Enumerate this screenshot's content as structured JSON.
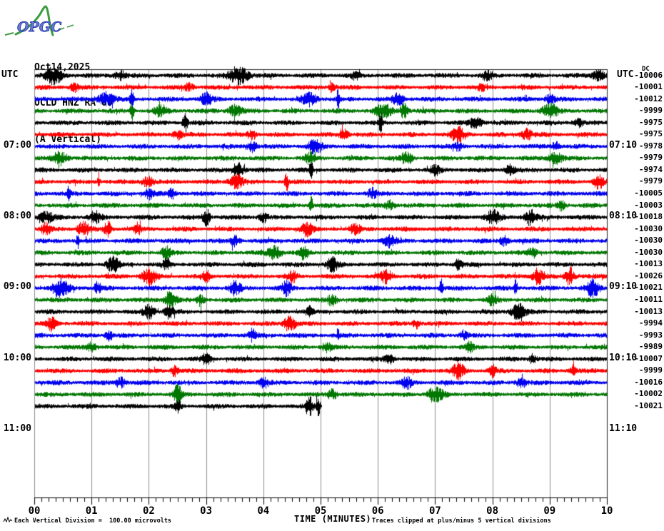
{
  "logo": {
    "text": "OPGC"
  },
  "header": {
    "date": "Oct14,2025",
    "station": "OCLD HNZ RA 00",
    "component": "(A Vertical)"
  },
  "axis": {
    "utc_left": "UTC",
    "utc_right": "UTC",
    "dc_label": "DC",
    "xlabel": "TIME (MINUTES)",
    "minute_labels": [
      "00",
      "01",
      "02",
      "03",
      "04",
      "05",
      "06",
      "07",
      "08",
      "09",
      "10"
    ],
    "hour_labels_left": [
      {
        "row": 7,
        "text": "07:00"
      },
      {
        "row": 13,
        "text": "08:00"
      },
      {
        "row": 19,
        "text": "09:00"
      },
      {
        "row": 25,
        "text": "10:00"
      },
      {
        "row": 31,
        "text": "11:00"
      }
    ],
    "hour_labels_right": [
      {
        "row": 7,
        "text": "07:10"
      },
      {
        "row": 13,
        "text": "08:10"
      },
      {
        "row": 19,
        "text": "09:10"
      },
      {
        "row": 25,
        "text": "10:10"
      },
      {
        "row": 31,
        "text": "11:10"
      }
    ]
  },
  "footer": {
    "left_note": "Each Vertical Division =  100.00 microvolts",
    "right_note": "Traces clipped at plus/minus 5 vertical divisions"
  },
  "colors": {
    "black": "#000000",
    "red": "#ff0000",
    "blue": "#0000ee",
    "green": "#007700",
    "grid": "#8c8c8c",
    "frame": "#222222",
    "logo_green": "#3d9c42",
    "logo_blue": "#4056c0"
  },
  "chart_data": {
    "type": "line",
    "subtype": "seismogram-helicorder",
    "title": "OCLD HNZ RA 00 (A Vertical) Oct14,2025",
    "xlabel": "TIME (MINUTES)",
    "x_range": [
      0,
      10
    ],
    "minor_ticks_per_minute": 7,
    "minutes_per_line": 10,
    "start_time_utc": "06:00",
    "division_microvolts": 100.0,
    "clip_divisions": 5,
    "trace_color_cycle": [
      "black",
      "red",
      "blue",
      "green"
    ],
    "traces": [
      {
        "start": "06:00",
        "color": "black",
        "dc": "-10006",
        "seed": 101,
        "end": 1.0,
        "bursts": [
          [
            0.033,
            0.015,
            9
          ],
          [
            0.15,
            0.01,
            5
          ],
          [
            0.357,
            0.016,
            10
          ],
          [
            0.56,
            0.008,
            4
          ],
          [
            0.79,
            0.01,
            4
          ],
          [
            0.985,
            0.01,
            6
          ]
        ]
      },
      {
        "start": "06:10",
        "color": "red",
        "dc": "-10001",
        "seed": 202,
        "end": 1.0,
        "bursts": [
          [
            0.07,
            0.008,
            4
          ],
          [
            0.27,
            0.008,
            4
          ],
          [
            0.52,
            0.006,
            5
          ],
          [
            0.78,
            0.006,
            4
          ]
        ]
      },
      {
        "start": "06:20",
        "color": "blue",
        "dc": "-10012",
        "seed": 303,
        "end": 1.0,
        "bursts": [
          [
            0.125,
            0.014,
            7
          ],
          [
            0.17,
            0.003,
            10
          ],
          [
            0.3,
            0.01,
            6
          ],
          [
            0.48,
            0.012,
            7
          ],
          [
            0.53,
            0.002,
            15
          ],
          [
            0.635,
            0.01,
            6
          ],
          [
            0.9,
            0.008,
            5
          ]
        ]
      },
      {
        "start": "06:30",
        "color": "green",
        "dc": "-9999",
        "seed": 404,
        "end": 1.0,
        "bursts": [
          [
            0.17,
            0.003,
            12
          ],
          [
            0.22,
            0.01,
            6
          ],
          [
            0.35,
            0.012,
            6
          ],
          [
            0.61,
            0.014,
            7
          ],
          [
            0.645,
            0.006,
            8
          ],
          [
            0.9,
            0.014,
            7
          ]
        ]
      },
      {
        "start": "06:40",
        "color": "black",
        "dc": "-9975",
        "seed": 505,
        "end": 1.0,
        "bursts": [
          [
            0.263,
            0.004,
            11
          ],
          [
            0.604,
            0.003,
            13
          ],
          [
            0.77,
            0.012,
            5
          ],
          [
            0.95,
            0.008,
            4
          ]
        ]
      },
      {
        "start": "06:50",
        "color": "red",
        "dc": "-9975",
        "seed": 606,
        "end": 1.0,
        "bursts": [
          [
            0.25,
            0.008,
            5
          ],
          [
            0.38,
            0.008,
            5
          ],
          [
            0.54,
            0.008,
            6
          ],
          [
            0.74,
            0.012,
            8
          ],
          [
            0.86,
            0.01,
            6
          ]
        ]
      },
      {
        "start": "07:00",
        "color": "blue",
        "dc": "-9978",
        "seed": 707,
        "end": 1.0,
        "bursts": [
          [
            0.38,
            0.008,
            6
          ],
          [
            0.49,
            0.012,
            7
          ],
          [
            0.74,
            0.008,
            4
          ],
          [
            0.91,
            0.006,
            5
          ]
        ]
      },
      {
        "start": "07:10",
        "color": "green",
        "dc": "-9979",
        "seed": 808,
        "end": 1.0,
        "bursts": [
          [
            0.045,
            0.012,
            7
          ],
          [
            0.48,
            0.008,
            6
          ],
          [
            0.65,
            0.01,
            6
          ],
          [
            0.91,
            0.012,
            6
          ]
        ]
      },
      {
        "start": "07:20",
        "color": "black",
        "dc": "-9974",
        "seed": 909,
        "end": 1.0,
        "bursts": [
          [
            0.355,
            0.01,
            8
          ],
          [
            0.483,
            0.003,
            10
          ],
          [
            0.7,
            0.008,
            5
          ],
          [
            0.83,
            0.008,
            5
          ]
        ]
      },
      {
        "start": "07:30",
        "color": "red",
        "dc": "-9979",
        "seed": 1010,
        "end": 1.0,
        "bursts": [
          [
            0.112,
            0.002,
            9
          ],
          [
            0.197,
            0.01,
            6
          ],
          [
            0.353,
            0.012,
            8
          ],
          [
            0.44,
            0.003,
            10
          ],
          [
            0.985,
            0.008,
            7
          ]
        ]
      },
      {
        "start": "07:40",
        "color": "blue",
        "dc": "-10005",
        "seed": 1111,
        "end": 1.0,
        "bursts": [
          [
            0.06,
            0.003,
            8
          ],
          [
            0.2,
            0.008,
            5
          ],
          [
            0.24,
            0.006,
            5
          ],
          [
            0.59,
            0.008,
            5
          ]
        ]
      },
      {
        "start": "07:50",
        "color": "green",
        "dc": "-10003",
        "seed": 1212,
        "end": 1.0,
        "bursts": [
          [
            0.483,
            0.003,
            9
          ],
          [
            0.62,
            0.008,
            5
          ],
          [
            0.92,
            0.008,
            5
          ]
        ]
      },
      {
        "start": "08:00",
        "color": "black",
        "dc": "-10018",
        "seed": 1313,
        "end": 1.0,
        "bursts": [
          [
            0.02,
            0.012,
            6
          ],
          [
            0.105,
            0.01,
            6
          ],
          [
            0.3,
            0.006,
            9
          ],
          [
            0.4,
            0.008,
            5
          ],
          [
            0.8,
            0.012,
            7
          ],
          [
            0.865,
            0.01,
            8
          ]
        ]
      },
      {
        "start": "08:10",
        "color": "red",
        "dc": "-10030",
        "seed": 1414,
        "end": 1.0,
        "bursts": [
          [
            0.02,
            0.008,
            6
          ],
          [
            0.085,
            0.01,
            8
          ],
          [
            0.128,
            0.006,
            8
          ],
          [
            0.18,
            0.006,
            6
          ],
          [
            0.475,
            0.01,
            7
          ],
          [
            0.56,
            0.008,
            6
          ]
        ]
      },
      {
        "start": "08:20",
        "color": "blue",
        "dc": "-10030",
        "seed": 1515,
        "end": 1.0,
        "bursts": [
          [
            0.075,
            0.002,
            9
          ],
          [
            0.35,
            0.008,
            6
          ],
          [
            0.62,
            0.01,
            7
          ],
          [
            0.82,
            0.008,
            5
          ]
        ]
      },
      {
        "start": "08:30",
        "color": "green",
        "dc": "-10030",
        "seed": 1616,
        "end": 1.0,
        "bursts": [
          [
            0.23,
            0.008,
            6
          ],
          [
            0.42,
            0.012,
            7
          ],
          [
            0.47,
            0.008,
            6
          ],
          [
            0.87,
            0.008,
            5
          ]
        ]
      },
      {
        "start": "08:40",
        "color": "black",
        "dc": "-10013",
        "seed": 1717,
        "end": 1.0,
        "bursts": [
          [
            0.137,
            0.01,
            9
          ],
          [
            0.23,
            0.006,
            6
          ],
          [
            0.52,
            0.01,
            7
          ],
          [
            0.74,
            0.006,
            6
          ]
        ]
      },
      {
        "start": "08:50",
        "color": "red",
        "dc": "-10026",
        "seed": 1818,
        "end": 1.0,
        "bursts": [
          [
            0.2,
            0.012,
            9
          ],
          [
            0.3,
            0.006,
            6
          ],
          [
            0.45,
            0.008,
            6
          ],
          [
            0.615,
            0.01,
            7
          ],
          [
            0.88,
            0.01,
            9
          ],
          [
            0.935,
            0.008,
            9
          ]
        ]
      },
      {
        "start": "09:00",
        "color": "blue",
        "dc": "-10021",
        "seed": 1919,
        "end": 1.0,
        "bursts": [
          [
            0.045,
            0.014,
            9
          ],
          [
            0.11,
            0.006,
            6
          ],
          [
            0.35,
            0.01,
            7
          ],
          [
            0.44,
            0.008,
            7
          ],
          [
            0.71,
            0.003,
            9
          ],
          [
            0.84,
            0.002,
            9
          ],
          [
            0.975,
            0.01,
            10
          ]
        ]
      },
      {
        "start": "09:10",
        "color": "green",
        "dc": "-10011",
        "seed": 2020,
        "end": 1.0,
        "bursts": [
          [
            0.237,
            0.01,
            10
          ],
          [
            0.29,
            0.006,
            6
          ],
          [
            0.52,
            0.008,
            6
          ],
          [
            0.8,
            0.008,
            6
          ]
        ]
      },
      {
        "start": "09:20",
        "color": "black",
        "dc": "-10013",
        "seed": 2121,
        "end": 1.0,
        "bursts": [
          [
            0.2,
            0.01,
            7
          ],
          [
            0.235,
            0.008,
            7
          ],
          [
            0.48,
            0.006,
            6
          ],
          [
            0.845,
            0.012,
            9
          ]
        ]
      },
      {
        "start": "09:30",
        "color": "red",
        "dc": "-9994",
        "seed": 2222,
        "end": 1.0,
        "bursts": [
          [
            0.03,
            0.008,
            7
          ],
          [
            0.445,
            0.01,
            9
          ],
          [
            0.667,
            0.006,
            5
          ]
        ]
      },
      {
        "start": "09:40",
        "color": "blue",
        "dc": "-9993",
        "seed": 2323,
        "end": 1.0,
        "bursts": [
          [
            0.13,
            0.006,
            5
          ],
          [
            0.38,
            0.006,
            6
          ],
          [
            0.53,
            0.002,
            8
          ],
          [
            0.75,
            0.006,
            5
          ]
        ]
      },
      {
        "start": "09:50",
        "color": "green",
        "dc": "-9989",
        "seed": 2424,
        "end": 1.0,
        "bursts": [
          [
            0.1,
            0.008,
            5
          ],
          [
            0.51,
            0.008,
            5
          ],
          [
            0.76,
            0.006,
            5
          ]
        ]
      },
      {
        "start": "10:00",
        "color": "black",
        "dc": "-10007",
        "seed": 2525,
        "end": 1.0,
        "bursts": [
          [
            0.3,
            0.008,
            5
          ],
          [
            0.62,
            0.008,
            5
          ],
          [
            0.87,
            0.006,
            5
          ]
        ]
      },
      {
        "start": "10:10",
        "color": "red",
        "dc": "-9999",
        "seed": 2626,
        "end": 1.0,
        "bursts": [
          [
            0.245,
            0.006,
            6
          ],
          [
            0.74,
            0.01,
            8
          ],
          [
            0.8,
            0.006,
            6
          ],
          [
            0.94,
            0.006,
            6
          ]
        ]
      },
      {
        "start": "10:20",
        "color": "blue",
        "dc": "-10016",
        "seed": 2727,
        "end": 1.0,
        "bursts": [
          [
            0.15,
            0.008,
            6
          ],
          [
            0.4,
            0.008,
            6
          ],
          [
            0.65,
            0.008,
            6
          ],
          [
            0.85,
            0.008,
            6
          ]
        ]
      },
      {
        "start": "10:30",
        "color": "green",
        "dc": "-10002",
        "seed": 2828,
        "end": 1.0,
        "bursts": [
          [
            0.25,
            0.006,
            13
          ],
          [
            0.52,
            0.008,
            6
          ],
          [
            0.7,
            0.012,
            9
          ]
        ]
      },
      {
        "start": "10:40",
        "color": "black",
        "dc": "-10021",
        "seed": 2929,
        "end": 0.502,
        "bursts": [
          [
            0.25,
            0.005,
            8
          ],
          [
            0.48,
            0.006,
            12
          ],
          [
            0.495,
            0.003,
            16
          ]
        ]
      }
    ]
  }
}
